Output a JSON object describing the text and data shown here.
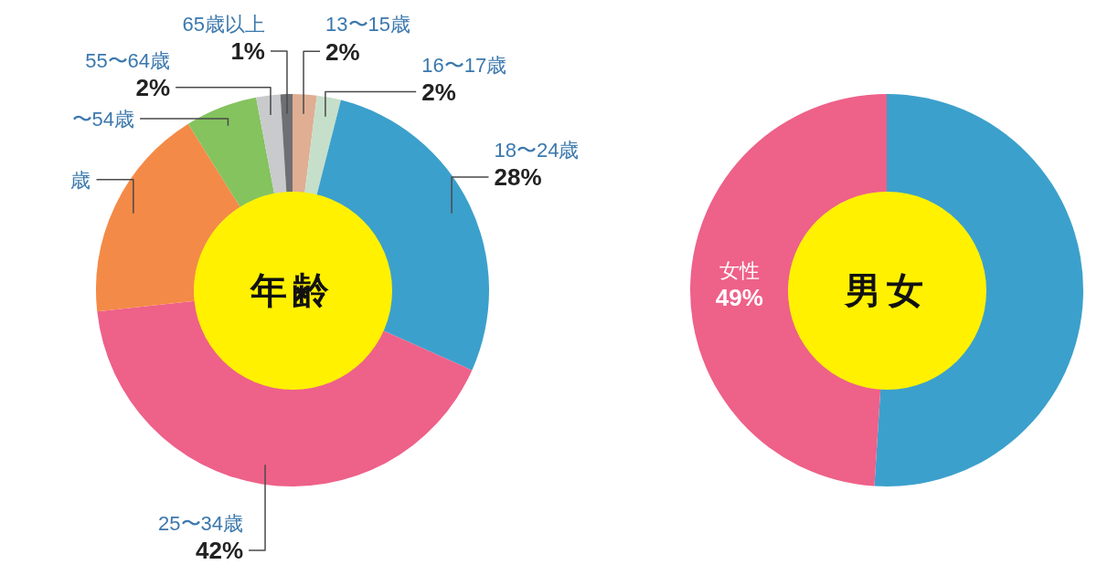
{
  "chart_data": [
    {
      "type": "donut",
      "title": "年齢",
      "categories": [
        "13〜15歳",
        "16〜17歳",
        "18〜24歳",
        "25〜34歳",
        "歳",
        "〜54歳",
        "55〜64歳",
        "65歳以上"
      ],
      "values": [
        2,
        2,
        28,
        42,
        18,
        6,
        2,
        1
      ],
      "value_labels": [
        "2%",
        "2%",
        "28%",
        "42%",
        null,
        null,
        "2%",
        "1%"
      ],
      "colors": [
        "#dfae93",
        "#c6dfca",
        "#3ca0cc",
        "#ee6189",
        "#f48a47",
        "#84c35e",
        "#c9cacc",
        "#6e6f72"
      ]
    },
    {
      "type": "donut",
      "title": "男女",
      "categories": [
        null,
        "女性"
      ],
      "values": [
        51,
        49
      ],
      "value_labels": [
        null,
        "49%"
      ],
      "colors": [
        "#3ca0cc",
        "#ee6189"
      ]
    }
  ]
}
